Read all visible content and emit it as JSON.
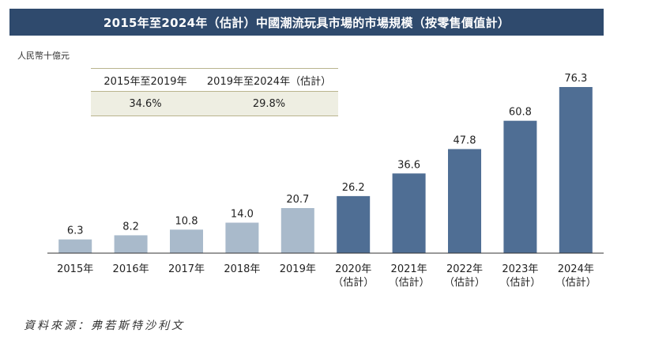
{
  "title": "2015年至2024年（估計）中國潮流玩具市場的市場規模（按零售價值計）",
  "unit_label": "人民幣十億元",
  "cagr_table": {
    "headers": [
      "2015年至2019年",
      "2019年至2024年（估計）"
    ],
    "values": [
      "34.6%",
      "29.8%"
    ]
  },
  "source": "資料來源：弗若斯特沙利文",
  "colors": {
    "title_bg": "#2f4a6d",
    "actual": "#a9bacb",
    "estimate": "#4f6e94"
  },
  "chart_data": {
    "type": "bar",
    "categories": [
      [
        "2015年"
      ],
      [
        "2016年"
      ],
      [
        "2017年"
      ],
      [
        "2018年"
      ],
      [
        "2019年"
      ],
      [
        "2020年",
        "（估計）"
      ],
      [
        "2021年",
        "（估計）"
      ],
      [
        "2022年",
        "（估計）"
      ],
      [
        "2023年",
        "（估計）"
      ],
      [
        "2024年",
        "（估計）"
      ]
    ],
    "values": [
      6.3,
      8.2,
      10.8,
      14.0,
      20.7,
      26.2,
      36.6,
      47.8,
      60.8,
      76.3
    ],
    "value_labels": [
      "6.3",
      "8.2",
      "10.8",
      "14.0",
      "20.7",
      "26.2",
      "36.6",
      "47.8",
      "60.8",
      "76.3"
    ],
    "estimate_flags": [
      false,
      false,
      false,
      false,
      false,
      true,
      true,
      true,
      true,
      true
    ],
    "ylim": [
      0,
      76.3
    ]
  }
}
